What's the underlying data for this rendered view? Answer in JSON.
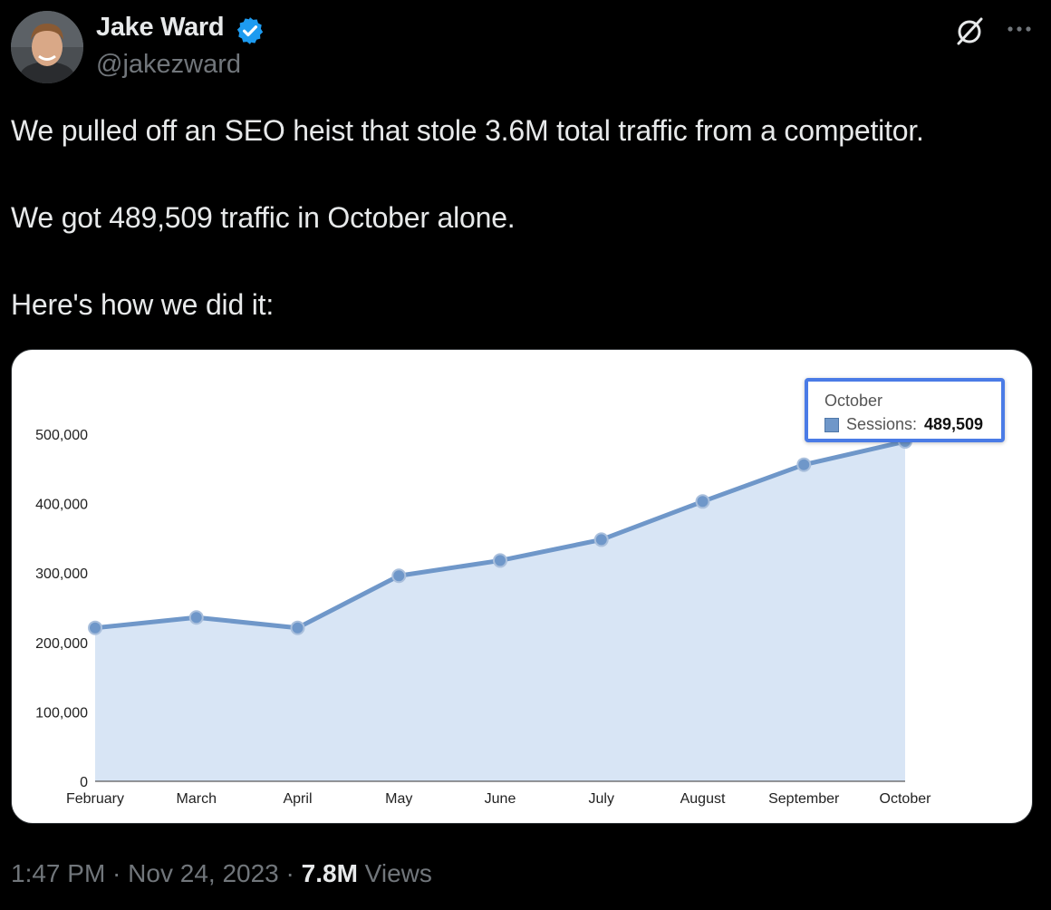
{
  "author": {
    "name": "Jake Ward",
    "handle": "@jakezward",
    "verified": true,
    "avatar": "avatar-photo"
  },
  "header_icons": [
    "grok-icon",
    "more-icon"
  ],
  "tweet": {
    "lines": [
      "We pulled off an SEO heist that stole 3.6M total traffic from a competitor.",
      "We got 489,509 traffic in October alone.",
      "Here's how we did it:"
    ]
  },
  "chart_data": {
    "type": "area",
    "categories": [
      "February",
      "March",
      "April",
      "May",
      "June",
      "July",
      "August",
      "September",
      "October"
    ],
    "series": [
      {
        "name": "Sessions",
        "values": [
          221000,
          236000,
          221000,
          296000,
          318000,
          348000,
          403000,
          456000,
          489509
        ],
        "color": "#6f97c9",
        "fill": "#d8e5f5"
      }
    ],
    "y_ticks": [
      "0",
      "100,000",
      "200,000",
      "300,000",
      "400,000",
      "500,000"
    ],
    "ylim": [
      0,
      500000
    ],
    "tooltip": {
      "title": "October",
      "series_label": "Sessions:",
      "value": "489,509"
    },
    "title": "",
    "xlabel": "",
    "ylabel": "",
    "grid": false,
    "legend": "none"
  },
  "meta": {
    "time": "1:47 PM",
    "separator": " · ",
    "date": "Nov 24, 2023",
    "views_count": "7.8M",
    "views_label": "Views"
  },
  "colors": {
    "background": "#000000",
    "text": "#e7e9ea",
    "secondary": "#71767b",
    "verified_badge": "#1d9bf0",
    "tooltip_border": "#4a7be6"
  }
}
